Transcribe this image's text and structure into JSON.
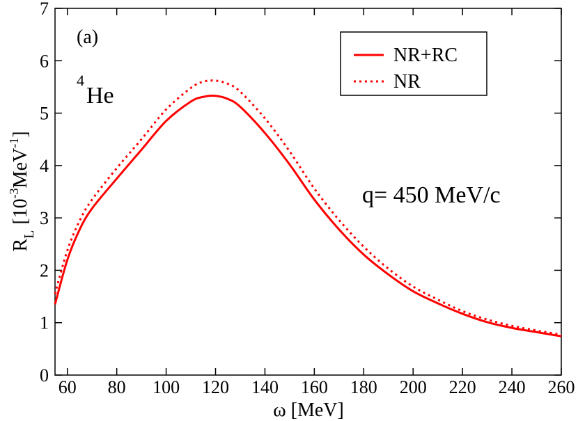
{
  "chart_data": {
    "type": "line",
    "panel_label": "(a)",
    "nucleus": {
      "mass_number": "4",
      "element": "He"
    },
    "annotation": "q= 450 MeV/c",
    "xlabel": "ω [MeV]",
    "ylabel": {
      "symbol": "R",
      "sub": "L",
      "unit_open": "[10",
      "exp1": "-3",
      "unit_mid": "MeV",
      "exp2": "-1",
      "unit_close": "]"
    },
    "xlim": [
      55,
      260
    ],
    "ylim": [
      0,
      7
    ],
    "xticks": [
      60,
      80,
      100,
      120,
      140,
      160,
      180,
      200,
      220,
      240,
      260
    ],
    "yticks": [
      0,
      1,
      2,
      3,
      4,
      5,
      6,
      7
    ],
    "legend_position": "top-right",
    "series": [
      {
        "name": "NR+RC",
        "style": "solid",
        "color": "#ff0000",
        "x": [
          55,
          60,
          65,
          70,
          80,
          90,
          100,
          110,
          115,
          120,
          125,
          130,
          140,
          150,
          160,
          170,
          180,
          190,
          200,
          210,
          220,
          230,
          240,
          250,
          260
        ],
        "y": [
          1.35,
          2.2,
          2.78,
          3.18,
          3.75,
          4.3,
          4.85,
          5.22,
          5.31,
          5.33,
          5.27,
          5.12,
          4.62,
          4.02,
          3.35,
          2.78,
          2.3,
          1.92,
          1.6,
          1.37,
          1.17,
          1.01,
          0.9,
          0.82,
          0.74
        ]
      },
      {
        "name": "NR",
        "style": "dotted",
        "color": "#ff0000",
        "x": [
          55,
          60,
          65,
          70,
          80,
          90,
          100,
          110,
          115,
          120,
          125,
          130,
          140,
          150,
          160,
          170,
          180,
          190,
          200,
          210,
          220,
          230,
          240,
          250,
          260
        ],
        "y": [
          1.55,
          2.38,
          2.95,
          3.35,
          3.95,
          4.5,
          5.07,
          5.48,
          5.6,
          5.62,
          5.56,
          5.41,
          4.9,
          4.27,
          3.56,
          2.96,
          2.45,
          2.03,
          1.69,
          1.44,
          1.22,
          1.06,
          0.94,
          0.85,
          0.77
        ]
      }
    ]
  }
}
